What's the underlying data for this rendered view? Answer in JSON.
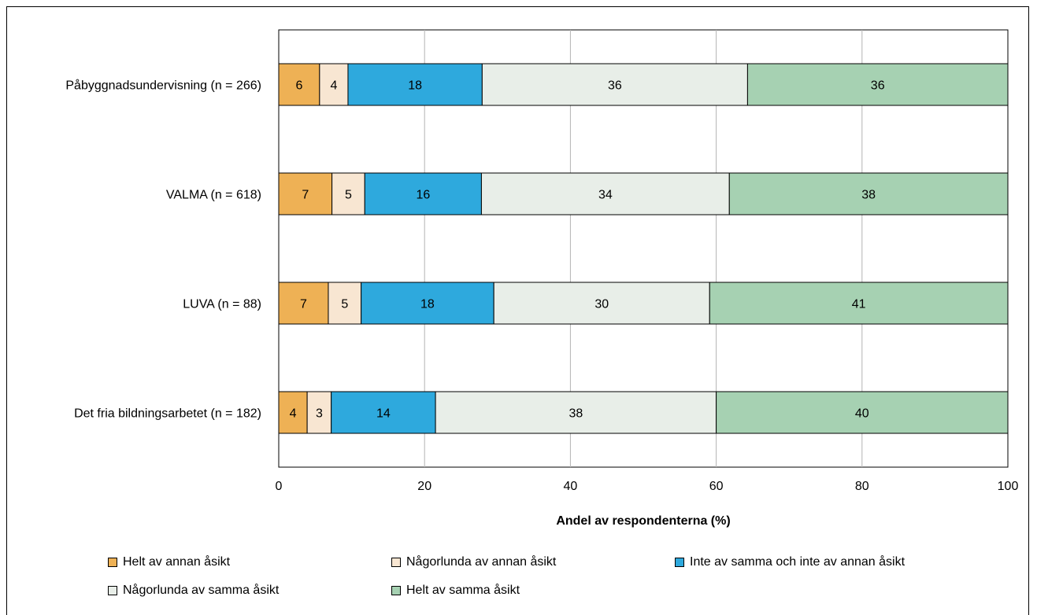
{
  "chart_data": {
    "type": "bar",
    "orientation": "horizontal-stacked",
    "categories": [
      "Påbyggnadsundervisning (n = 266)",
      "VALMA (n = 618)",
      "LUVA (n = 88)",
      "Det fria bildningsarbetet (n = 182)"
    ],
    "series": [
      {
        "name": "Helt av annan åsikt",
        "color": "#eeb155",
        "values": [
          5.6,
          7.3,
          6.8,
          3.9
        ]
      },
      {
        "name": "Någorlunda av annan åsikt",
        "color": "#f8e6d2",
        "values": [
          3.9,
          4.5,
          4.5,
          3.3
        ]
      },
      {
        "name": "Inte av samma och inte av annan åsikt",
        "color": "#2ea9dd",
        "values": [
          18.4,
          16.0,
          18.2,
          14.3
        ]
      },
      {
        "name": "Någorlunda av samma åsikt",
        "color": "#e8eee8",
        "values": [
          36.4,
          34.0,
          29.6,
          38.5
        ]
      },
      {
        "name": "Helt av samma åsikt",
        "color": "#a6d1b2",
        "values": [
          35.7,
          38.2,
          40.9,
          40.0
        ]
      }
    ],
    "labels": [
      [
        "6",
        "4",
        "18",
        "36",
        "36"
      ],
      [
        "7",
        "5",
        "16",
        "34",
        "38"
      ],
      [
        "7",
        "5",
        "18",
        "30",
        "41"
      ],
      [
        "4",
        "3",
        "14",
        "38",
        "40"
      ]
    ],
    "xlabel": "Andel av respondenterna (%)",
    "xlim": [
      0,
      100
    ],
    "xticks": [
      "0",
      "20",
      "40",
      "60",
      "80",
      "100"
    ],
    "grid": "vertical",
    "legend_position": "bottom"
  }
}
